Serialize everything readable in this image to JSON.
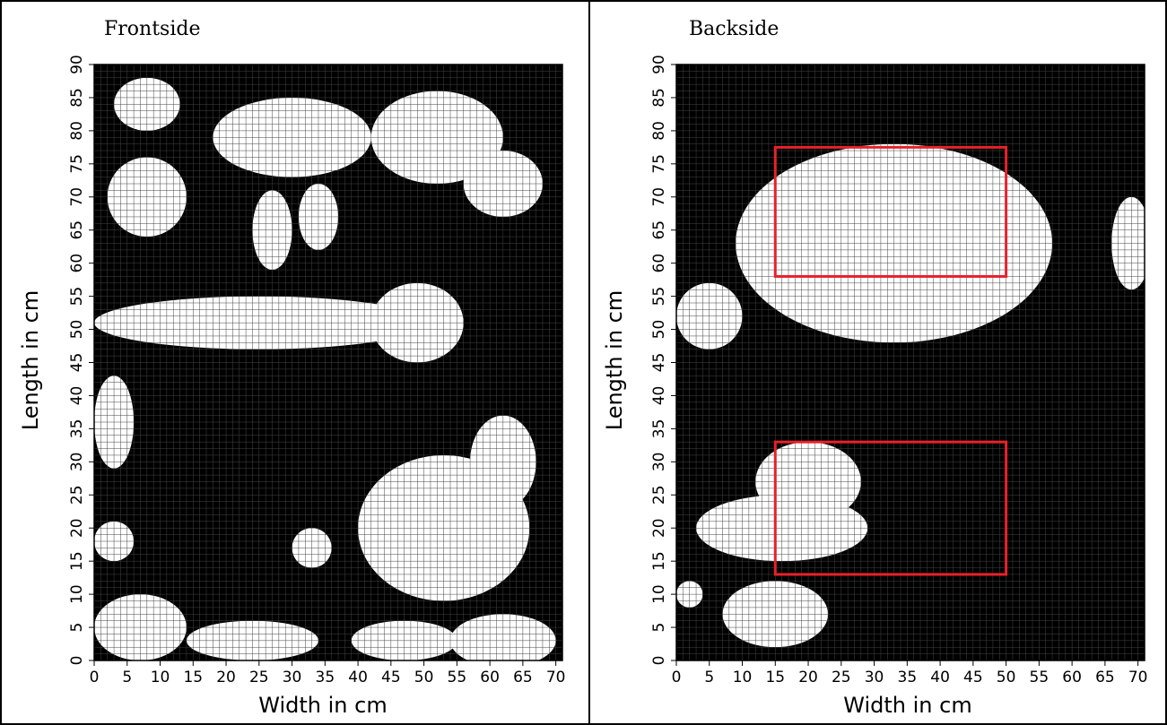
{
  "chart_data": [
    {
      "type": "heatmap",
      "title": "Frontside",
      "xlabel": "Width in cm",
      "ylabel": "Length in cm",
      "xlim": [
        0,
        71
      ],
      "ylim": [
        0,
        90
      ],
      "x_ticks": [
        "0",
        "5",
        "10",
        "15",
        "20",
        "25",
        "30",
        "35",
        "40",
        "45",
        "50",
        "55",
        "60",
        "65",
        "70"
      ],
      "y_ticks": [
        "0",
        "5",
        "10",
        "15",
        "20",
        "25",
        "30",
        "35",
        "40",
        "45",
        "50",
        "55",
        "60",
        "65",
        "70",
        "75",
        "80",
        "85",
        "90"
      ],
      "colors": {
        "background": "#000000",
        "region": "#ffffff",
        "grid": "#444444"
      },
      "regions": [
        {
          "type": "ellipse",
          "cx": 8,
          "cy": 84,
          "rx": 5,
          "ry": 4
        },
        {
          "type": "ellipse",
          "cx": 8,
          "cy": 70,
          "rx": 6,
          "ry": 6
        },
        {
          "type": "ellipse",
          "cx": 30,
          "cy": 79,
          "rx": 12,
          "ry": 6
        },
        {
          "type": "ellipse",
          "cx": 27,
          "cy": 65,
          "rx": 3,
          "ry": 6
        },
        {
          "type": "ellipse",
          "cx": 34,
          "cy": 67,
          "rx": 3,
          "ry": 5
        },
        {
          "type": "ellipse",
          "cx": 52,
          "cy": 79,
          "rx": 10,
          "ry": 7
        },
        {
          "type": "ellipse",
          "cx": 62,
          "cy": 72,
          "rx": 6,
          "ry": 5
        },
        {
          "type": "ellipse",
          "cx": 25,
          "cy": 51,
          "rx": 25,
          "ry": 4
        },
        {
          "type": "ellipse",
          "cx": 49,
          "cy": 51,
          "rx": 7,
          "ry": 6
        },
        {
          "type": "ellipse",
          "cx": 3,
          "cy": 36,
          "rx": 3,
          "ry": 7
        },
        {
          "type": "ellipse",
          "cx": 53,
          "cy": 20,
          "rx": 13,
          "ry": 11
        },
        {
          "type": "ellipse",
          "cx": 62,
          "cy": 30,
          "rx": 5,
          "ry": 7
        },
        {
          "type": "ellipse",
          "cx": 33,
          "cy": 17,
          "rx": 3,
          "ry": 3
        },
        {
          "type": "ellipse",
          "cx": 7,
          "cy": 5,
          "rx": 7,
          "ry": 5
        },
        {
          "type": "ellipse",
          "cx": 24,
          "cy": 3,
          "rx": 10,
          "ry": 3
        },
        {
          "type": "ellipse",
          "cx": 47,
          "cy": 3,
          "rx": 8,
          "ry": 3
        },
        {
          "type": "ellipse",
          "cx": 62,
          "cy": 3,
          "rx": 8,
          "ry": 4
        },
        {
          "type": "ellipse",
          "cx": 3,
          "cy": 18,
          "rx": 3,
          "ry": 3
        }
      ]
    },
    {
      "type": "heatmap",
      "title": "Backside",
      "xlabel": "Width in cm",
      "ylabel": "Length in cm",
      "xlim": [
        0,
        71
      ],
      "ylim": [
        0,
        90
      ],
      "x_ticks": [
        "0",
        "5",
        "10",
        "15",
        "20",
        "25",
        "30",
        "35",
        "40",
        "45",
        "50",
        "55",
        "60",
        "65",
        "70"
      ],
      "y_ticks": [
        "0",
        "5",
        "10",
        "15",
        "20",
        "25",
        "30",
        "35",
        "40",
        "45",
        "50",
        "55",
        "60",
        "65",
        "70",
        "75",
        "80",
        "85",
        "90"
      ],
      "colors": {
        "background": "#000000",
        "region": "#ffffff",
        "grid": "#444444",
        "box": "#e8212a"
      },
      "regions": [
        {
          "type": "ellipse",
          "cx": 33,
          "cy": 63,
          "rx": 24,
          "ry": 15
        },
        {
          "type": "ellipse",
          "cx": 5,
          "cy": 52,
          "rx": 5,
          "ry": 5
        },
        {
          "type": "ellipse",
          "cx": 69,
          "cy": 63,
          "rx": 3,
          "ry": 7
        },
        {
          "type": "ellipse",
          "cx": 16,
          "cy": 20,
          "rx": 13,
          "ry": 5
        },
        {
          "type": "ellipse",
          "cx": 20,
          "cy": 27,
          "rx": 8,
          "ry": 6
        },
        {
          "type": "ellipse",
          "cx": 15,
          "cy": 7,
          "rx": 8,
          "ry": 5
        },
        {
          "type": "ellipse",
          "cx": 2,
          "cy": 10,
          "rx": 2,
          "ry": 2
        }
      ],
      "boxes": [
        {
          "x0": 15,
          "x1": 50,
          "y0": 58,
          "y1": 77.5
        },
        {
          "x0": 15,
          "x1": 50,
          "y0": 13,
          "y1": 33
        }
      ]
    }
  ]
}
